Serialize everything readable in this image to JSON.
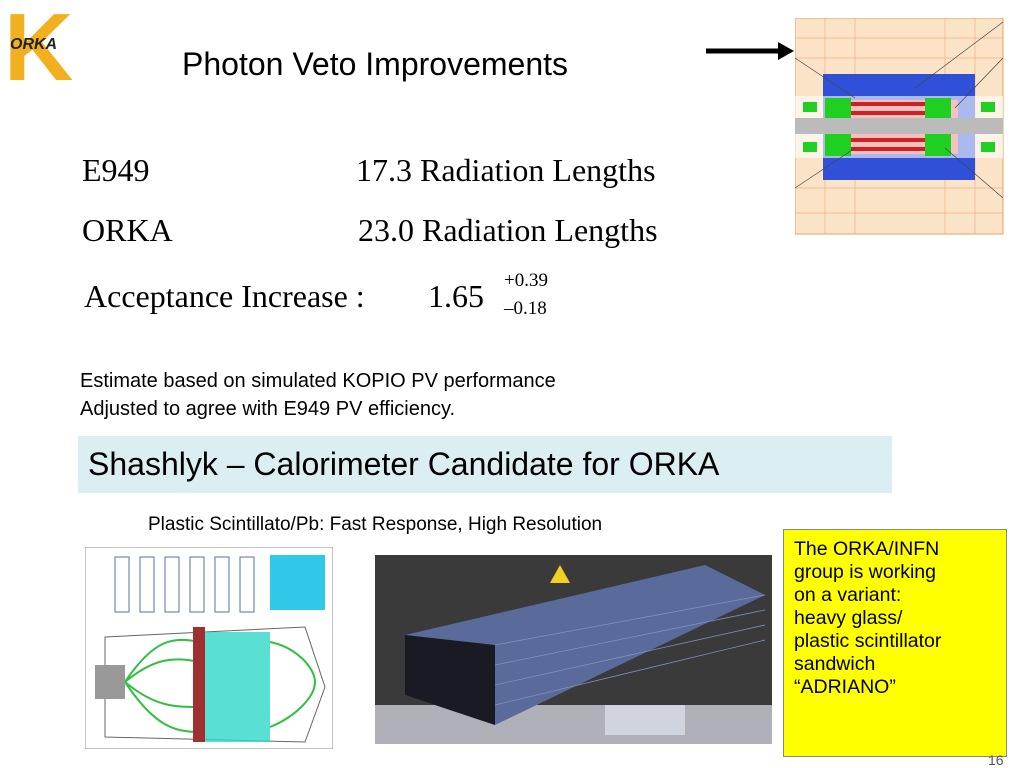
{
  "logo": {
    "letter": "K",
    "name": "ORKA"
  },
  "title": "Photon Veto Improvements",
  "comparison": [
    {
      "experiment": "E949",
      "radiation": "17.3 Radiation Lengths"
    },
    {
      "experiment": "ORKA",
      "radiation": "23.0 Radiation Lengths"
    }
  ],
  "acceptance": {
    "label": "Acceptance Increase :",
    "value": "1.65",
    "plus": "+0.39",
    "minus": "–0.18"
  },
  "notes": [
    "Estimate based on simulated KOPIO PV performance",
    "Adjusted to agree with E949 PV efficiency."
  ],
  "banner": "Shashlyk – Calorimeter Candidate for ORKA",
  "caption": "Plastic Scintillato/Pb: Fast Response, High Resolution",
  "callout": [
    "The ORKA/INFN",
    "group is working",
    "on a variant:",
    "heavy glass/",
    "plastic scintillator",
    "sandwich",
    "“ADRIANO”"
  ],
  "page_number": "16"
}
